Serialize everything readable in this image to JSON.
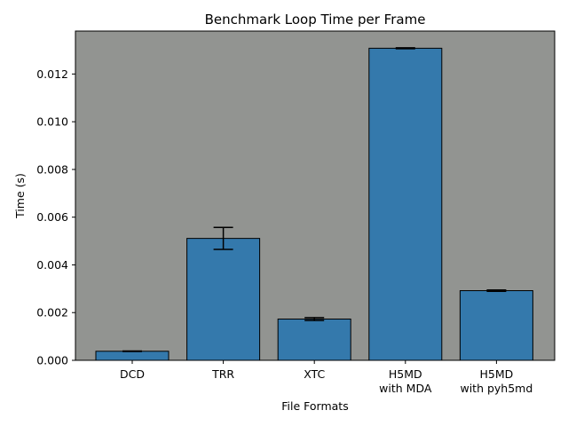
{
  "chart_data": {
    "type": "bar",
    "title": "Benchmark Loop Time per Frame",
    "xlabel": "File Formats",
    "ylabel": "Time (s)",
    "categories": [
      [
        "DCD"
      ],
      [
        "TRR"
      ],
      [
        "XTC"
      ],
      [
        "H5MD",
        "with MDA"
      ],
      [
        "H5MD",
        "with pyh5md"
      ]
    ],
    "values": [
      0.00038,
      0.00511,
      0.00173,
      0.01308,
      0.00292
    ],
    "errors": [
      1e-05,
      0.00046,
      6e-05,
      2e-05,
      3e-05
    ],
    "ylim": [
      0,
      0.0138
    ],
    "yticks": [
      0.0,
      0.002,
      0.004,
      0.006,
      0.008,
      0.01,
      0.012
    ],
    "ytick_labels": [
      "0.000",
      "0.002",
      "0.004",
      "0.006",
      "0.008",
      "0.010",
      "0.012"
    ],
    "grid": false,
    "colors": {
      "bar": "#3479ac",
      "bar_edge": "#000000",
      "plot_background": "#929491",
      "error_bar": "#000000"
    }
  }
}
